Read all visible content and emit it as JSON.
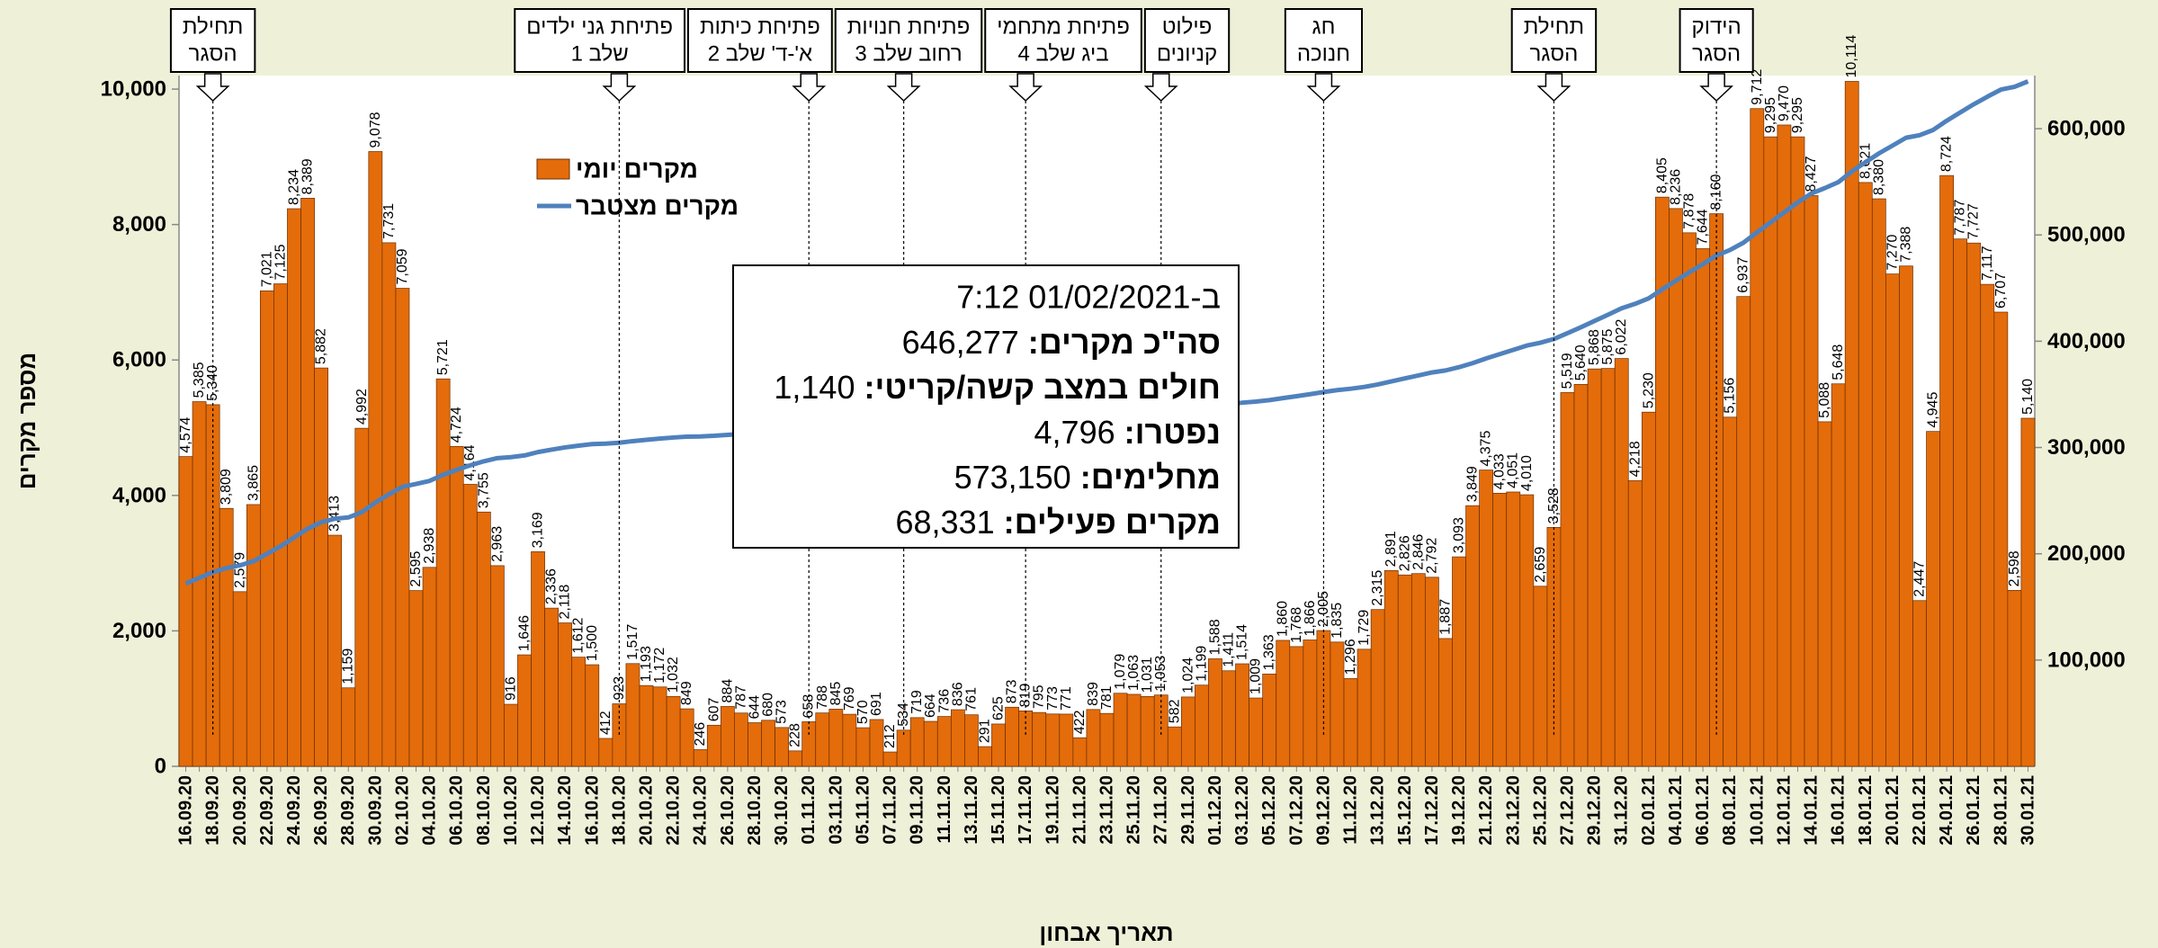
{
  "chart_data": {
    "type": "bar",
    "x_label": "תאריך אבחון",
    "y_label": "מספר מקרים",
    "categories": [
      "16.09.20",
      null,
      "18.09.20",
      null,
      "20.09.20",
      null,
      "22.09.20",
      null,
      "24.09.20",
      null,
      "26.09.20",
      null,
      "28.09.20",
      null,
      "30.09.20",
      null,
      "02.10.20",
      null,
      "04.10.20",
      null,
      "06.10.20",
      null,
      "08.10.20",
      null,
      "10.10.20",
      null,
      "12.10.20",
      null,
      "14.10.20",
      null,
      "16.10.20",
      null,
      "18.10.20",
      null,
      "20.10.20",
      null,
      "22.10.20",
      null,
      "24.10.20",
      null,
      "26.10.20",
      null,
      "28.10.20",
      null,
      "30.10.20",
      null,
      "01.11.20",
      null,
      "03.11.20",
      null,
      "05.11.20",
      null,
      "07.11.20",
      null,
      "09.11.20",
      null,
      "11.11.20",
      null,
      "13.11.20",
      null,
      "15.11.20",
      null,
      "17.11.20",
      null,
      "19.11.20",
      null,
      "21.11.20",
      null,
      "23.11.20",
      null,
      "25.11.20",
      null,
      "27.11.20",
      null,
      "29.11.20",
      null,
      "01.12.20",
      null,
      "03.12.20",
      null,
      "05.12.20",
      null,
      "07.12.20",
      null,
      "09.12.20",
      null,
      "11.12.20",
      null,
      "13.12.20",
      null,
      "15.12.20",
      null,
      "17.12.20",
      null,
      "19.12.20",
      null,
      "21.12.20",
      null,
      "23.12.20",
      null,
      "25.12.20",
      null,
      "27.12.20",
      null,
      "29.12.20",
      null,
      "31.12.20",
      null,
      "02.01.21",
      null,
      "04.01.21",
      null,
      "06.01.21",
      null,
      "08.01.21",
      null,
      "10.01.21",
      null,
      "12.01.21",
      null,
      "14.01.21",
      null,
      "16.01.21",
      null,
      "18.01.21",
      null,
      "20.01.21",
      null,
      "22.01.21",
      null,
      "24.01.21",
      null,
      "26.01.21",
      null,
      "28.01.21",
      null,
      "30.01.21"
    ],
    "series": [
      {
        "name": "מקרים יומי",
        "color": "#e46c0a",
        "type": "bar",
        "values": [
          4574,
          5385,
          5340,
          3809,
          2579,
          3865,
          7021,
          7125,
          8234,
          8389,
          5882,
          3413,
          1159,
          4992,
          9078,
          7731,
          7059,
          2595,
          2938,
          5721,
          4724,
          4164,
          3755,
          2963,
          916,
          1646,
          3169,
          2336,
          2118,
          1612,
          1500,
          412,
          923,
          1517,
          1193,
          1172,
          1032,
          849,
          246,
          607,
          884,
          787,
          644,
          680,
          573,
          228,
          658,
          788,
          845,
          769,
          570,
          691,
          212,
          534,
          719,
          664,
          736,
          836,
          761,
          291,
          625,
          873,
          819,
          795,
          773,
          771,
          422,
          839,
          781,
          1079,
          1063,
          1031,
          1053,
          582,
          1024,
          1199,
          1588,
          1411,
          1514,
          1009,
          1363,
          1860,
          1768,
          1866,
          2005,
          1835,
          1296,
          1729,
          2315,
          2891,
          2826,
          2846,
          2792,
          1887,
          3093,
          3849,
          4375,
          4033,
          4051,
          4010,
          2659,
          3528,
          5519,
          5640,
          5868,
          5875,
          6022,
          4218,
          5230,
          8405,
          8236,
          7878,
          7644,
          8160,
          5156,
          6937,
          9712,
          9295,
          9470,
          9295,
          8427,
          5088,
          5648,
          10114,
          8621,
          8380,
          7270,
          7388,
          2447,
          4945,
          8724,
          7787,
          7727,
          7117,
          6707,
          2598,
          5140
        ],
        "value_labels": [
          "4,574",
          "5,385",
          "5,340",
          "3,809",
          "2,579",
          "3,865",
          "7,021",
          "7,125",
          "8,234",
          "8,389",
          "5,882",
          "3,413",
          "1,159",
          "4,992",
          "9,078",
          "7,731",
          "7,059",
          "2,595",
          "2,938",
          "5,721",
          "4,724",
          "4,164",
          "3,755",
          "2,963",
          "916",
          "1,646",
          "3,169",
          "2,336",
          "2,118",
          "1,612",
          "1,500",
          "412",
          "923",
          "1,517",
          "1,193",
          "1,172",
          "1,032",
          "849",
          "246",
          "607",
          "884",
          "787",
          "644",
          "680",
          "573",
          "228",
          "658",
          "788",
          "845",
          "769",
          "570",
          "691",
          "212",
          "534",
          "719",
          "664",
          "736",
          "836",
          "761",
          "291",
          "625",
          "873",
          "819",
          "795",
          "773",
          "771",
          "422",
          "839",
          "781",
          "1,079",
          "1,063",
          "1,031",
          "1,053",
          "582",
          "1,024",
          "1,199",
          "1,588",
          "1,411",
          "1,514",
          "1,009",
          "1,363",
          "1,860",
          "1,768",
          "1,866",
          "2,005",
          "1,835",
          "1,296",
          "1,729",
          "2,315",
          "2,891",
          "2,826",
          "2,846",
          "2,792",
          "1,887",
          "3,093",
          "3,849",
          "4,375",
          "4,033",
          "4,051",
          "4,010",
          "2,659",
          "3,528",
          "5,519",
          "5,640",
          "5,868",
          "5,875",
          "6,022",
          "4,218",
          "5,230",
          "8,405",
          "8,236",
          "7,878",
          "7,644",
          "8,160",
          "5,156",
          "6,937",
          "9,712",
          "9,295",
          "9,470",
          "9,295",
          "8,427",
          "5,088",
          "5,648",
          "10,114",
          "8,621",
          "8,380",
          "7,270",
          "7,388",
          "2,447",
          "4,945",
          "8,724",
          "7,787",
          "7,727",
          "7,117",
          "6,707",
          "2,598",
          "5,140"
        ]
      },
      {
        "name": "מקרים מצטבר",
        "color": "#4f81bd",
        "type": "line",
        "axis": "y2",
        "values": [
          172000,
          177400,
          182700,
          186500,
          189100,
          193000,
          200000,
          207100,
          215300,
          223700,
          229600,
          233000,
          234200,
          239200,
          248300,
          256000,
          263100,
          265700,
          268600,
          274300,
          279000,
          283200,
          287000,
          290000,
          290900,
          292500,
          295700,
          298000,
          300100,
          301700,
          303200,
          303600,
          304500,
          306000,
          307200,
          308400,
          309400,
          310200,
          310400,
          311000,
          311900,
          312700,
          313300,
          314000,
          314600,
          314800,
          315500,
          316300,
          317100,
          317900,
          318500,
          319200,
          319400,
          319900,
          320600,
          321300,
          322000,
          322800,
          323600,
          323900,
          324500,
          325400,
          326200,
          327000,
          327800,
          328600,
          329000,
          329800,
          330600,
          331700,
          332800,
          333800,
          334900,
          335500,
          336500,
          337700,
          339300,
          340700,
          342200,
          343200,
          344600,
          346500,
          348300,
          350200,
          352200,
          354000,
          355300,
          357000,
          359300,
          362200,
          365000,
          367800,
          370600,
          372500,
          375600,
          379400,
          383800,
          387800,
          391900,
          395900,
          398600,
          402100,
          407600,
          413200,
          419100,
          425000,
          431000,
          435200,
          440400,
          448800,
          457000,
          464900,
          472500,
          480700,
          485900,
          492800,
          502500,
          511800,
          521300,
          530600,
          539000,
          544100,
          549700,
          559800,
          568400,
          576800,
          584100,
          591500,
          593900,
          598800,
          607500,
          615300,
          623000,
          630100,
          636800,
          639400,
          644500
        ]
      }
    ],
    "ylim": [
      0,
      10200
    ],
    "yticks": [
      0,
      {
        "value": 2000,
        "label": "2,000"
      },
      {
        "value": 4000,
        "label": "4,000"
      },
      {
        "value": 6000,
        "label": "6,000"
      },
      {
        "value": 8000,
        "label": "8,000"
      },
      {
        "value": 10000,
        "label": "10,000"
      }
    ],
    "y2lim": [
      0,
      650000
    ],
    "y2ticks": [
      {
        "value": 100000,
        "label": "100,000"
      },
      {
        "value": 200000,
        "label": "200,000"
      },
      {
        "value": 300000,
        "label": "300,000"
      },
      {
        "value": 400000,
        "label": "400,000"
      },
      {
        "value": 500000,
        "label": "500,000"
      },
      {
        "value": 600000,
        "label": "600,000"
      }
    ],
    "grid": false,
    "legend": "upper-left",
    "annotations": [
      {
        "date": "18.09.20",
        "lines": [
          "תחילת",
          "הסגר"
        ]
      },
      {
        "date": "18.10.20",
        "lines": [
          "פתיחת גני ילדים",
          "שלב 1"
        ]
      },
      {
        "date": "01.11.20",
        "lines": [
          "פתיחת כיתות",
          "א'-ד' שלב 2"
        ]
      },
      {
        "date": "08.11.20",
        "lines": [
          "פתיחת חנויות",
          "רחוב שלב 3"
        ]
      },
      {
        "date": "17.11.20",
        "lines": [
          "פתיחת מתחמי",
          "ביג שלב 4"
        ]
      },
      {
        "date": "27.11.20",
        "lines": [
          "פילוט",
          "קניונים"
        ]
      },
      {
        "date": "09.12.20",
        "lines": [
          "חג",
          "חנוכה"
        ]
      },
      {
        "date": "26.12.20",
        "lines": [
          "תחילת",
          "הסגר"
        ]
      },
      {
        "date": "07.01.21",
        "lines": [
          "הידוק",
          "הסגר"
        ]
      }
    ],
    "info_box": {
      "timestamp": "ב-01/02/2021  7:12",
      "rows": [
        {
          "label": "סה\"כ מקרים:",
          "value": "646,277"
        },
        {
          "label": "חולים במצב קשה/קריטי:",
          "value": "1,140"
        },
        {
          "label": "נפטרו:",
          "value": "4,796"
        },
        {
          "label": "מחלימים:",
          "value": "573,150"
        },
        {
          "label": "מקרים פעילים:",
          "value": "68,331"
        }
      ]
    }
  }
}
